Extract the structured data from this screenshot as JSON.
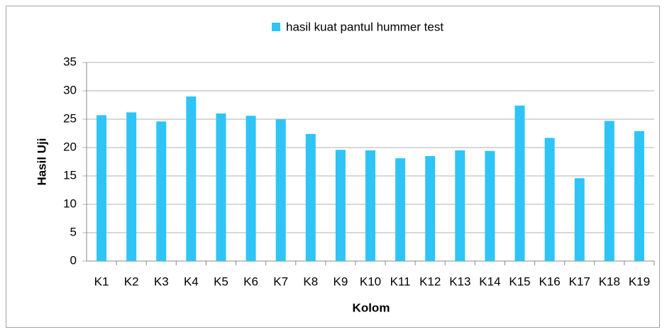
{
  "chart_data": {
    "type": "bar",
    "series": [
      {
        "name": "hasil kuat pantul hummer test",
        "color": "#2ec4f6",
        "values": [
          25.7,
          26.2,
          24.6,
          29,
          26,
          25.6,
          25,
          22.4,
          19.6,
          19.5,
          18.1,
          18.5,
          19.5,
          19.4,
          27.4,
          21.7,
          14.6,
          24.7,
          22.9
        ]
      }
    ],
    "categories": [
      "K1",
      "K2",
      "K3",
      "K4",
      "K5",
      "K6",
      "K7",
      "K8",
      "K9",
      "K10",
      "K11",
      "K12",
      "K13",
      "K14",
      "K15",
      "K16",
      "K17",
      "K18",
      "K19"
    ],
    "x_label": "Kolom",
    "y_label": "Hasil Uji",
    "ylim": [
      0,
      35
    ],
    "yticks": [
      0,
      5,
      10,
      15,
      20,
      25,
      30,
      35
    ],
    "grid": true,
    "legend": "top"
  }
}
